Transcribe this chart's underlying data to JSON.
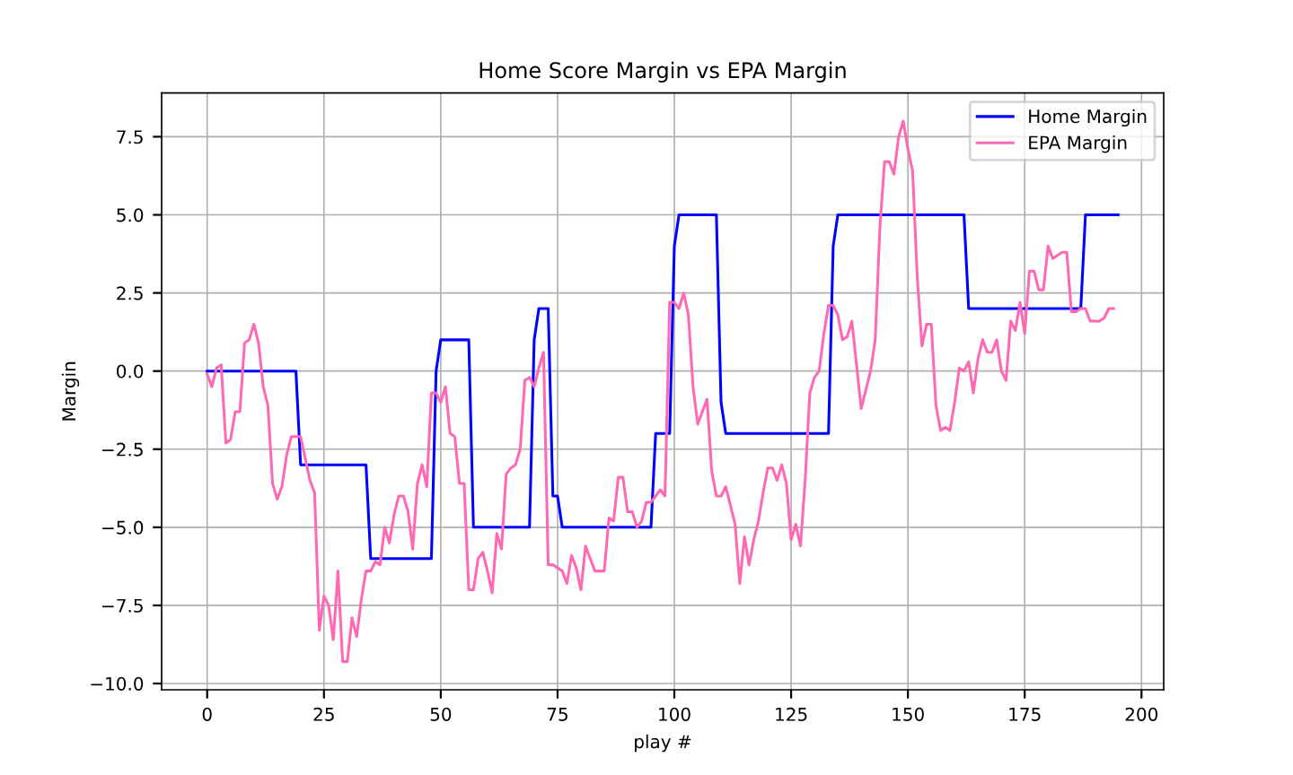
{
  "chart_data": {
    "type": "line",
    "title": "Home Score Margin vs EPA Margin",
    "xlabel": "play #",
    "ylabel": "Margin",
    "xlim": [
      -9.75,
      204.75
    ],
    "ylim": [
      -10.2,
      8.9
    ],
    "xticks": [
      0,
      25,
      50,
      75,
      100,
      125,
      150,
      175,
      200
    ],
    "yticks": [
      {
        "value": -10,
        "label": "−10.0"
      },
      {
        "value": -7.5,
        "label": "−7.5"
      },
      {
        "value": -5,
        "label": "−5.0"
      },
      {
        "value": -2.5,
        "label": "−2.5"
      },
      {
        "value": 0,
        "label": "0.0"
      },
      {
        "value": 2.5,
        "label": "2.5"
      },
      {
        "value": 5,
        "label": "5.0"
      },
      {
        "value": 7.5,
        "label": "7.5"
      }
    ],
    "grid": true,
    "legend": "top right",
    "line_style": "solid",
    "marker": "none",
    "series": [
      {
        "name": "Home Margin",
        "color": "#0000ff",
        "x": [
          0,
          19,
          20,
          34,
          35,
          48,
          49,
          50,
          56,
          57,
          69,
          70,
          71,
          73,
          74,
          75,
          76,
          95,
          96,
          99,
          100,
          101,
          109,
          110,
          111,
          133,
          134,
          135,
          162,
          163,
          187,
          188,
          195
        ],
        "values": [
          0,
          0,
          -3,
          -3,
          -6,
          -6,
          0,
          1,
          1,
          -5,
          -5,
          1,
          2,
          2,
          -4,
          -4,
          -5,
          -5,
          -2,
          -2,
          4,
          5,
          5,
          -1,
          -2,
          -2,
          4,
          5,
          5,
          2,
          2,
          5,
          5
        ]
      },
      {
        "name": "EPA Margin",
        "color": "#ff69b4",
        "x": [
          0,
          1,
          2,
          3,
          4,
          5,
          6,
          7,
          8,
          9,
          10,
          11,
          12,
          13,
          14,
          15,
          16,
          17,
          18,
          19,
          20,
          21,
          22,
          23,
          24,
          25,
          26,
          27,
          28,
          29,
          30,
          31,
          32,
          33,
          34,
          35,
          36,
          37,
          38,
          39,
          40,
          41,
          42,
          43,
          44,
          45,
          46,
          47,
          48,
          49,
          50,
          51,
          52,
          53,
          54,
          55,
          56,
          57,
          58,
          59,
          60,
          61,
          62,
          63,
          64,
          65,
          66,
          67,
          68,
          69,
          70,
          71,
          72,
          73,
          74,
          75,
          76,
          77,
          78,
          79,
          80,
          81,
          82,
          83,
          84,
          85,
          86,
          87,
          88,
          89,
          90,
          91,
          92,
          93,
          94,
          95,
          96,
          97,
          98,
          99,
          100,
          101,
          102,
          103,
          104,
          105,
          106,
          107,
          108,
          109,
          110,
          111,
          112,
          113,
          114,
          115,
          116,
          117,
          118,
          119,
          120,
          121,
          122,
          123,
          124,
          125,
          126,
          127,
          128,
          129,
          130,
          131,
          132,
          133,
          134,
          135,
          136,
          137,
          138,
          139,
          140,
          141,
          142,
          143,
          144,
          145,
          146,
          147,
          148,
          149,
          150,
          151,
          152,
          153,
          154,
          155,
          156,
          157,
          158,
          159,
          160,
          161,
          162,
          163,
          164,
          165,
          166,
          167,
          168,
          169,
          170,
          171,
          172,
          173,
          174,
          175,
          176,
          177,
          178,
          179,
          180,
          181,
          182,
          183,
          184,
          185,
          186,
          187,
          188,
          189,
          190,
          191,
          192,
          193,
          194
        ],
        "values": [
          -0.1,
          -0.5,
          0.1,
          0.2,
          -2.3,
          -2.2,
          -1.3,
          -1.3,
          0.9,
          1.0,
          1.5,
          0.9,
          -0.5,
          -1.1,
          -3.6,
          -4.1,
          -3.7,
          -2.7,
          -2.1,
          -2.1,
          -2.1,
          -2.8,
          -3.5,
          -3.9,
          -8.3,
          -7.2,
          -7.5,
          -8.6,
          -6.4,
          -9.3,
          -9.3,
          -7.9,
          -8.5,
          -7.3,
          -6.4,
          -6.4,
          -6.1,
          -6.2,
          -5.0,
          -5.5,
          -4.6,
          -4.0,
          -4.0,
          -4.5,
          -5.7,
          -3.6,
          -3.0,
          -3.7,
          -0.7,
          -0.7,
          -1.0,
          -0.5,
          -2.0,
          -2.1,
          -3.6,
          -3.6,
          -7.0,
          -7.0,
          -6.0,
          -5.8,
          -6.4,
          -7.1,
          -5.2,
          -5.7,
          -3.3,
          -3.1,
          -3.0,
          -2.5,
          -0.3,
          -0.2,
          -0.5,
          0.1,
          0.6,
          -6.2,
          -6.2,
          -6.3,
          -6.4,
          -6.8,
          -5.9,
          -6.3,
          -7.0,
          -5.6,
          -6.0,
          -6.4,
          -6.4,
          -6.4,
          -4.7,
          -4.8,
          -3.4,
          -3.4,
          -4.5,
          -4.5,
          -5.0,
          -4.8,
          -4.2,
          -4.2,
          -4.0,
          -3.8,
          -4.0,
          2.2,
          2.2,
          2.0,
          2.5,
          1.8,
          -0.5,
          -1.7,
          -1.3,
          -0.9,
          -3.2,
          -4.0,
          -4.0,
          -3.7,
          -4.3,
          -4.9,
          -6.8,
          -5.3,
          -6.2,
          -5.4,
          -4.8,
          -3.9,
          -3.1,
          -3.1,
          -3.5,
          -3.0,
          -3.6,
          -5.4,
          -4.9,
          -5.6,
          -3.5,
          -0.7,
          -0.2,
          0.0,
          1.2,
          2.1,
          2.1,
          1.8,
          1.0,
          1.1,
          1.6,
          0.2,
          -1.2,
          -0.6,
          0.0,
          1.0,
          4.6,
          6.7,
          6.7,
          6.3,
          7.5,
          8.0,
          7.1,
          6.4,
          3.0,
          0.8,
          1.5,
          1.5,
          -1.1,
          -1.9,
          -1.8,
          -1.9,
          -1.0,
          0.1,
          0.0,
          0.3,
          -0.7,
          0.4,
          1.0,
          0.6,
          0.6,
          1.0,
          0.0,
          -0.3,
          1.6,
          1.3,
          2.2,
          1.2,
          3.2,
          3.2,
          2.6,
          2.6,
          4.0,
          3.6,
          3.7,
          3.8,
          3.8,
          1.9,
          1.9,
          2.0,
          2.0,
          1.6,
          1.6,
          1.6,
          1.7,
          2.0,
          2.0
        ]
      }
    ]
  }
}
